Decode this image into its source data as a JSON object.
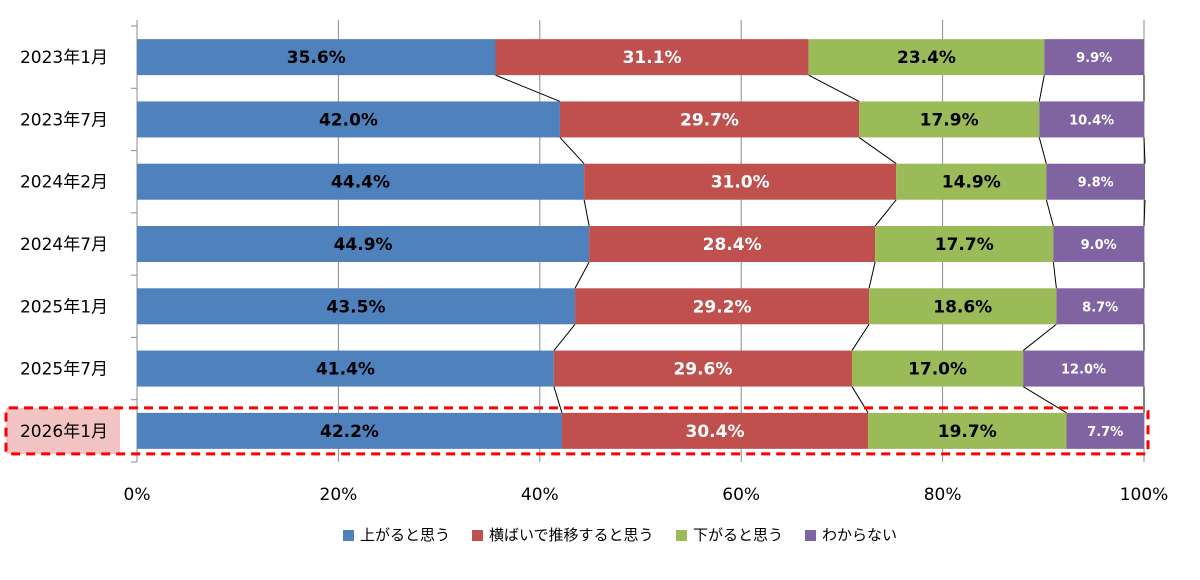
{
  "chart_data": {
    "type": "bar",
    "orientation": "horizontal",
    "stacked": true,
    "percent_stacked": true,
    "categories": [
      "2023年1月",
      "2023年7月",
      "2024年2月",
      "2024年7月",
      "2025年1月",
      "2025年7月",
      "2026年1月"
    ],
    "series": [
      {
        "name": "上がると思う",
        "color": "#4f81bd",
        "label_color": "#000000",
        "values": [
          35.6,
          42.0,
          44.4,
          44.9,
          43.5,
          41.4,
          42.2
        ],
        "labels": [
          "35.6%",
          "42.0%",
          "44.4%",
          "44.9%",
          "43.5%",
          "41.4%",
          "42.2%"
        ]
      },
      {
        "name": "横ばいで推移すると思う",
        "color": "#c0504d",
        "label_color": "#ffffff",
        "values": [
          31.1,
          29.7,
          31.0,
          28.4,
          29.2,
          29.6,
          30.4
        ],
        "labels": [
          "31.1%",
          "29.7%",
          "31.0%",
          "28.4%",
          "29.2%",
          "29.6%",
          "30.4%"
        ]
      },
      {
        "name": "下がると思う",
        "color": "#9bbb59",
        "label_color": "#000000",
        "values": [
          23.4,
          17.9,
          14.9,
          17.7,
          18.6,
          17.0,
          19.7
        ],
        "labels": [
          "23.4%",
          "17.9%",
          "14.9%",
          "17.7%",
          "18.6%",
          "17.0%",
          "19.7%"
        ]
      },
      {
        "name": "わからない",
        "color": "#8064a2",
        "label_color": "#ffffff",
        "values": [
          9.9,
          10.4,
          9.8,
          9.0,
          8.7,
          12.0,
          7.7
        ],
        "labels": [
          "9.9%",
          "10.4%",
          "9.8%",
          "9.0%",
          "8.7%",
          "12.0%",
          "7.7%"
        ]
      }
    ],
    "xlim": [
      0,
      100
    ],
    "xticks": [
      "0%",
      "20%",
      "40%",
      "60%",
      "80%",
      "100%"
    ],
    "grid": true,
    "series_lines": true,
    "legend_position": "bottom",
    "highlight": {
      "category": "2026年1月",
      "color": "#ff0000",
      "label_background": "#f2c4c4"
    },
    "title": "",
    "xlabel": "",
    "ylabel": ""
  }
}
